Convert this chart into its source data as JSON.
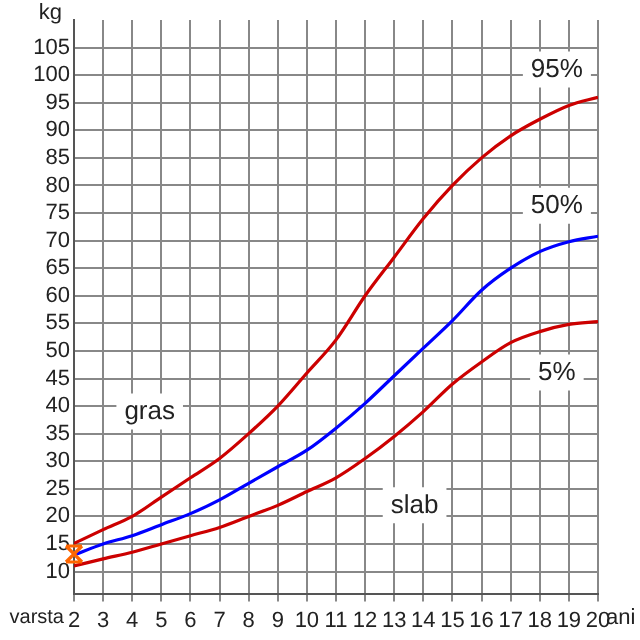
{
  "chart_data": {
    "type": "line",
    "xlabel": "varsta",
    "ylabel": "kg",
    "x": [
      2,
      3,
      4,
      5,
      6,
      7,
      8,
      9,
      10,
      11,
      12,
      13,
      14,
      15,
      16,
      17,
      18,
      19,
      20
    ],
    "series": [
      {
        "name": "95%",
        "color": "#cc0000",
        "values": [
          15.1,
          17.6,
          20,
          23.5,
          27,
          30.5,
          35,
          40,
          46,
          52,
          60,
          67,
          74,
          80,
          85,
          89,
          92,
          94.5,
          96
        ]
      },
      {
        "name": "50%",
        "color": "#0000ff",
        "values": [
          13,
          15,
          16.5,
          18.5,
          20.5,
          23,
          26,
          29,
          32,
          36,
          40.5,
          45.5,
          50.5,
          55.5,
          61,
          65,
          68,
          69.8,
          70.8
        ]
      },
      {
        "name": "5%",
        "color": "#cc0000",
        "values": [
          11,
          12.3,
          13.5,
          15,
          16.5,
          18,
          20,
          22,
          24.5,
          27,
          30.5,
          34.5,
          39,
          44,
          48,
          51.5,
          53.5,
          54.8,
          55.3
        ]
      }
    ],
    "annotations": [
      {
        "text": "gras",
        "x": 4.6,
        "y": 39
      },
      {
        "text": "slab",
        "x": 13.7,
        "y": 22
      },
      "ani"
    ],
    "xlim": [
      2,
      20
    ],
    "ylim": [
      6,
      110
    ],
    "xticks": [
      2,
      3,
      4,
      5,
      6,
      7,
      8,
      9,
      10,
      11,
      12,
      13,
      14,
      15,
      16,
      17,
      18,
      19,
      20
    ],
    "yticks": [
      10,
      15,
      20,
      25,
      30,
      35,
      40,
      45,
      50,
      55,
      60,
      65,
      70,
      75,
      80,
      85,
      90,
      95,
      100,
      105
    ],
    "grid": true,
    "legend": false,
    "marker": "none",
    "line_style": "solid"
  }
}
